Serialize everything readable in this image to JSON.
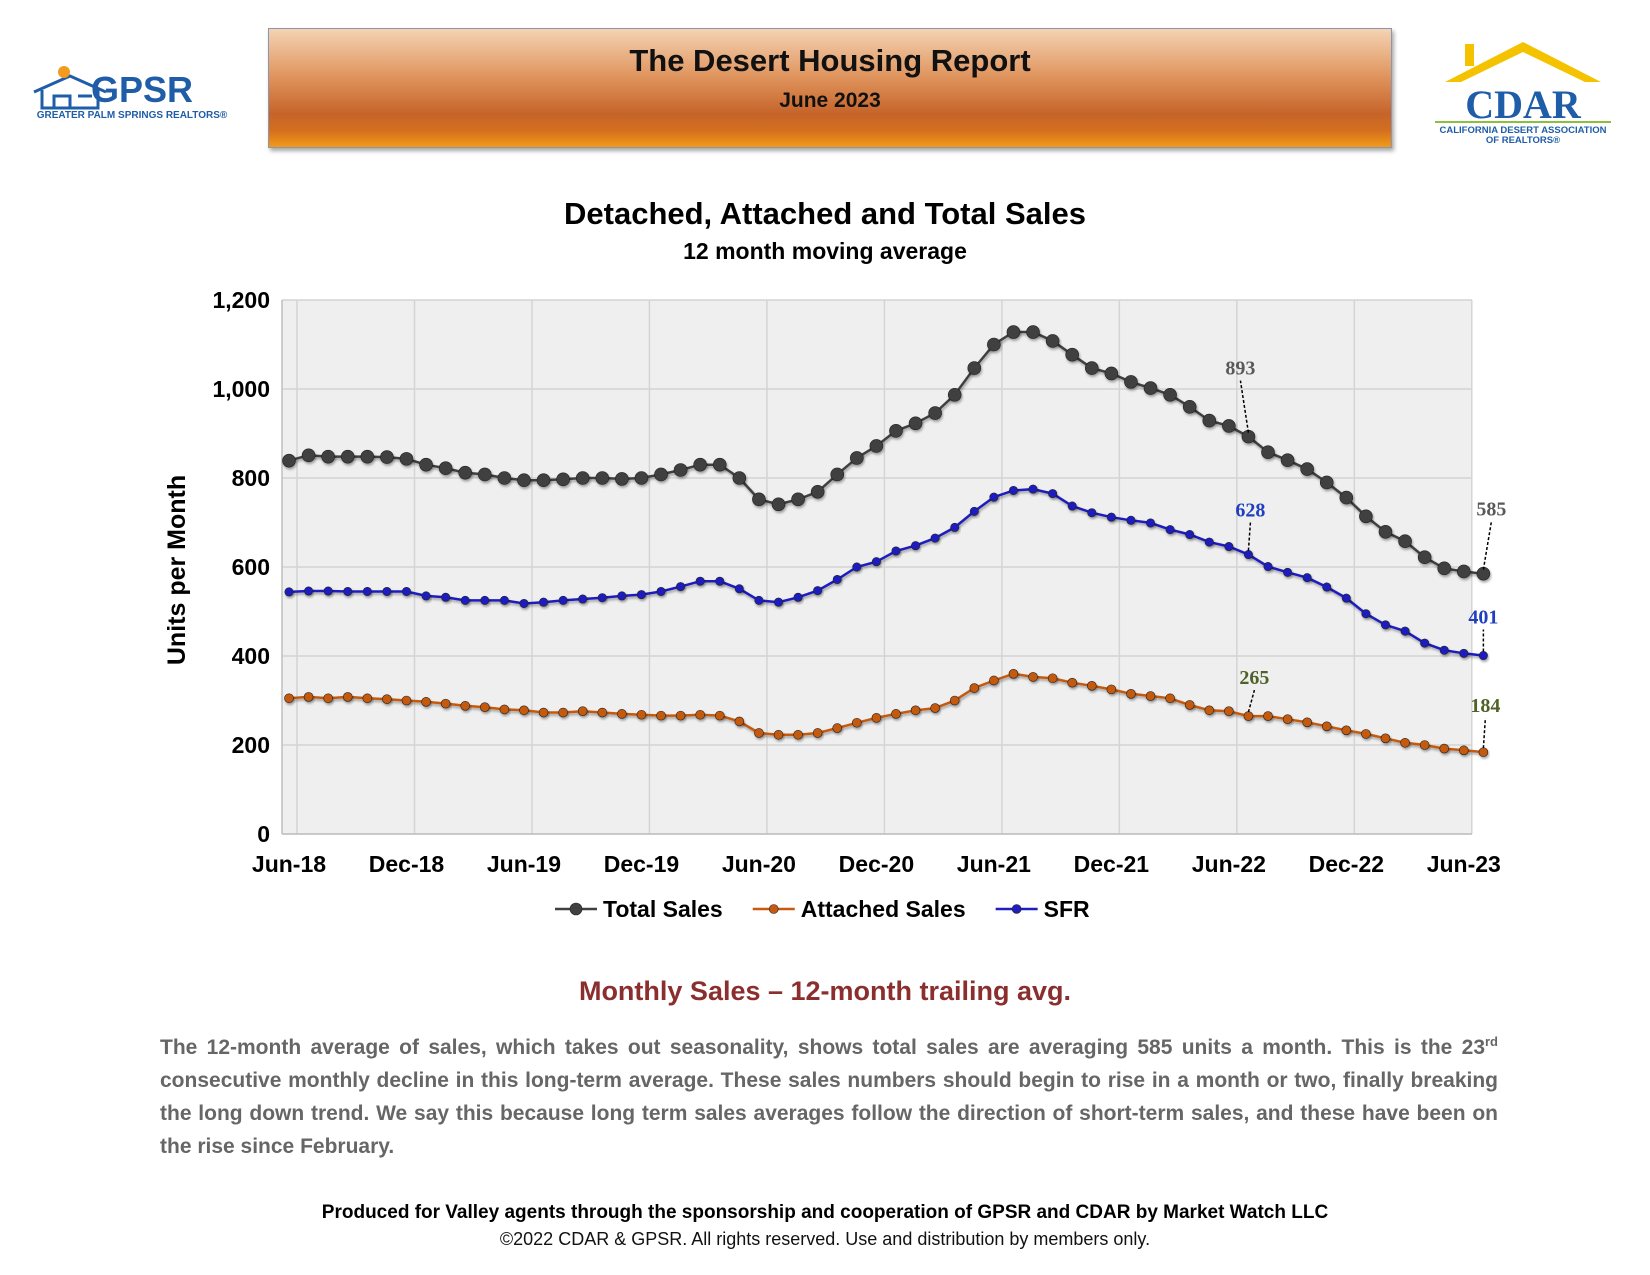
{
  "header": {
    "title": "The Desert Housing Report",
    "date": "June 2023",
    "gpsr_logo_text": "GPSR",
    "gpsr_logo_tagline": "GREATER PALM SPRINGS REALTORS®",
    "cdar_logo_text": "CDAR",
    "cdar_logo_tagline_1": "CALIFORNIA DESERT ASSOCIATION",
    "cdar_logo_tagline_2": "OF REALTORS®"
  },
  "chart_data": {
    "type": "line",
    "title": "Detached, Attached and Total Sales",
    "subtitle": "12 month moving average",
    "ylabel": "Units per Month",
    "xlabel": "",
    "ylim": [
      0,
      1200
    ],
    "yticks": [
      0,
      200,
      400,
      600,
      800,
      1000,
      1200
    ],
    "ytick_labels": [
      "0",
      "200",
      "400",
      "600",
      "800",
      "1,000",
      "1,200"
    ],
    "x_tick_labels": [
      "Jun-18",
      "Dec-18",
      "Jun-19",
      "Dec-19",
      "Jun-20",
      "Dec-20",
      "Jun-21",
      "Dec-21",
      "Jun-22",
      "Dec-22",
      "Jun-23"
    ],
    "x_tick_month_index": [
      0,
      6,
      12,
      18,
      24,
      30,
      36,
      42,
      48,
      54,
      60
    ],
    "grid": true,
    "legend_position": "bottom",
    "series": [
      {
        "name": "Total Sales",
        "color": "#404040",
        "values": [
          839,
          851,
          848,
          848,
          848,
          847,
          843,
          830,
          822,
          812,
          808,
          800,
          795,
          795,
          797,
          800,
          800,
          798,
          800,
          808,
          818,
          830,
          830,
          800,
          752,
          741,
          752,
          769,
          808,
          845,
          872,
          906,
          923,
          946,
          987,
          1047,
          1100,
          1128,
          1128,
          1108,
          1077,
          1047,
          1035,
          1016,
          1002,
          987,
          960,
          929,
          917,
          893,
          858,
          840,
          820,
          790,
          756,
          714,
          679,
          658,
          622,
          597,
          590,
          585
        ]
      },
      {
        "name": "Attached Sales",
        "color": "#c55a11",
        "values": [
          305,
          308,
          305,
          308,
          305,
          303,
          300,
          297,
          293,
          288,
          285,
          280,
          278,
          273,
          273,
          276,
          273,
          270,
          268,
          266,
          266,
          268,
          266,
          253,
          227,
          223,
          223,
          227,
          238,
          250,
          261,
          270,
          278,
          283,
          300,
          328,
          345,
          360,
          353,
          350,
          340,
          333,
          325,
          315,
          310,
          305,
          290,
          278,
          276,
          265,
          265,
          258,
          251,
          242,
          233,
          225,
          215,
          205,
          200,
          192,
          188,
          184
        ]
      },
      {
        "name": "SFR",
        "color": "#1f1fbf",
        "values": [
          544,
          546,
          546,
          545,
          545,
          545,
          545,
          535,
          532,
          525,
          525,
          525,
          518,
          521,
          525,
          528,
          531,
          535,
          538,
          545,
          556,
          568,
          568,
          551,
          525,
          521,
          532,
          547,
          572,
          600,
          612,
          636,
          648,
          665,
          689,
          725,
          757,
          772,
          775,
          765,
          737,
          722,
          712,
          705,
          699,
          684,
          673,
          656,
          646,
          628,
          601,
          588,
          576,
          555,
          530,
          495,
          470,
          456,
          429,
          413,
          406,
          401
        ]
      }
    ],
    "annotations": [
      {
        "text": "893",
        "series": "Total Sales",
        "month_index": 49,
        "color": "#595959"
      },
      {
        "text": "585",
        "series": "Total Sales",
        "month_index": 61,
        "color": "#595959"
      },
      {
        "text": "628",
        "series": "SFR",
        "month_index": 49,
        "color": "#1f3fbf"
      },
      {
        "text": "401",
        "series": "SFR",
        "month_index": 61,
        "color": "#1f3fbf"
      },
      {
        "text": "265",
        "series": "Attached Sales",
        "month_index": 49,
        "color": "#4f6228"
      },
      {
        "text": "184",
        "series": "Attached Sales",
        "month_index": 61,
        "color": "#4f6228"
      }
    ]
  },
  "commentary": {
    "heading": "Monthly Sales – 12-month trailing avg.",
    "p1": "The 12-month average of sales, which takes out seasonality, shows total sales are averaging 585 units a month. This is the 23",
    "sup": "rd",
    "p2": " consecutive monthly decline in this long-term average. These sales numbers should begin to rise in a month or two, finally breaking the long down trend. We say this because long term sales averages follow the direction of short-term sales, and these have been on the rise since February."
  },
  "footer": {
    "line1": "Produced for Valley agents through the sponsorship and cooperation of GPSR and CDAR by Market Watch LLC",
    "line2": "©2022 CDAR & GPSR.  All rights reserved.  Use and distribution by members only."
  }
}
